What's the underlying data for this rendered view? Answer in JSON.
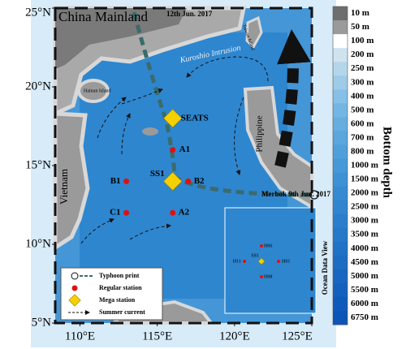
{
  "map": {
    "xlim": [
      108.4,
      125
    ],
    "ylim": [
      5,
      25
    ],
    "xticks": [
      {
        "value": 110,
        "label": "110°E"
      },
      {
        "value": 115,
        "label": "115°E"
      },
      {
        "value": 120,
        "label": "120°E"
      },
      {
        "value": 125,
        "label": "125°E"
      }
    ],
    "yticks": [
      {
        "value": 5,
        "label": "5°N"
      },
      {
        "value": 10,
        "label": "10°N"
      },
      {
        "value": 15,
        "label": "15°N"
      },
      {
        "value": 20,
        "label": "20°N"
      },
      {
        "value": 25,
        "label": "25°N"
      }
    ],
    "labels": {
      "china": "China Mainland",
      "typhoon_date": "12th Jun. 2017",
      "kuroshio": "Kuroshio Intrusion",
      "taiwan": "Taiwan Island",
      "hainan": "Hainan Island",
      "vietnam": "Vietnam",
      "philippine": "Philippine",
      "merbok": "Merbok 9th Jun. 2017",
      "odv": "Ocean Data View"
    },
    "stations": [
      {
        "name": "SEATS",
        "lon": 116,
        "lat": 18,
        "marker": "diamond",
        "color": "#f5d000"
      },
      {
        "name": "A1",
        "lon": 116,
        "lat": 16,
        "marker": "circle",
        "color": "#e01010"
      },
      {
        "name": "SS1",
        "lon": 116,
        "lat": 14,
        "marker": "diamond",
        "color": "#f5d000"
      },
      {
        "name": "B2",
        "lon": 117,
        "lat": 14,
        "marker": "circle",
        "color": "#e01010"
      },
      {
        "name": "B1",
        "lon": 113,
        "lat": 14,
        "marker": "circle",
        "color": "#e01010"
      },
      {
        "name": "C1",
        "lon": 113,
        "lat": 12,
        "marker": "circle",
        "color": "#e01010"
      },
      {
        "name": "A2",
        "lon": 116,
        "lat": 12,
        "marker": "circle",
        "color": "#e01010"
      }
    ]
  },
  "legend": [
    "Typhoon print",
    "Regular station",
    "Mega station",
    "Summer current"
  ],
  "inset": {
    "stations": [
      "H06",
      "H11",
      "SS1",
      "H01",
      "H08"
    ]
  },
  "colorbar": {
    "title": "Bottom depth",
    "labels": [
      "10 m",
      "50 m",
      "100 m",
      "200 m",
      "250 m",
      "300 m",
      "400 m",
      "500 m",
      "600 m",
      "700 m",
      "800 m",
      "1000 m",
      "1500 m",
      "2000 m",
      "2500 m",
      "3000 m",
      "3500 m",
      "4000 m",
      "4500 m",
      "5000 m",
      "5500 m",
      "6000 m",
      "6750 m"
    ],
    "colors": [
      "#6e6e6e",
      "#9a9a9a",
      "#ffffff",
      "#cfe3ee",
      "#b5d6ea",
      "#9dcbe8",
      "#86c0e6",
      "#74b6e3",
      "#66aee0",
      "#5aa6dd",
      "#4f9fda",
      "#4698d7",
      "#3e91d4",
      "#378ad1",
      "#3184cf",
      "#2b7ecc",
      "#2678c9",
      "#2172c6",
      "#1c6cc3",
      "#1866c0",
      "#1460bd",
      "#105aba",
      "#0c54b6"
    ]
  }
}
